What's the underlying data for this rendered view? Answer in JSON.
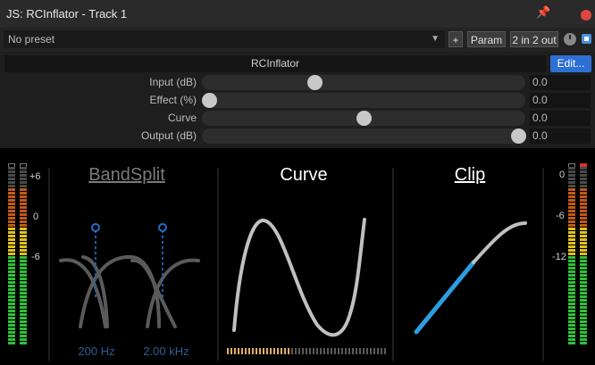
{
  "window": {
    "title": "JS: RCInflator - Track 1"
  },
  "toolbar": {
    "preset": "No preset",
    "add_label": "+",
    "param_label": "Param",
    "io_label": "2 in 2 out"
  },
  "effect": {
    "name": "RCInflator",
    "edit_label": "Edit..."
  },
  "sliders": [
    {
      "label": "Input (dB)",
      "value": "0.0",
      "position": 0.34
    },
    {
      "label": "Effect (%)",
      "value": "0.0",
      "position": 0.0
    },
    {
      "label": "Curve",
      "value": "0.0",
      "position": 0.5
    },
    {
      "label": "Output (dB)",
      "value": "0.0",
      "position": 1.0
    }
  ],
  "display": {
    "bandsplit_title": "BandSplit",
    "curve_title": "Curve",
    "clip_title": "Clip",
    "freq_low": "200 Hz",
    "freq_high": "2.00 kHz"
  },
  "meters": {
    "left_ticks": [
      "+6",
      "0",
      "-6"
    ],
    "right_ticks": [
      "0",
      "-6",
      "-12"
    ]
  },
  "colors": {
    "accent": "#2e6fd4",
    "clip_blue": "#2d9de0",
    "meter_green": "#2fbf3a",
    "meter_yellow": "#f0d020",
    "meter_orange": "#f08020",
    "close_red": "#e0463e"
  }
}
